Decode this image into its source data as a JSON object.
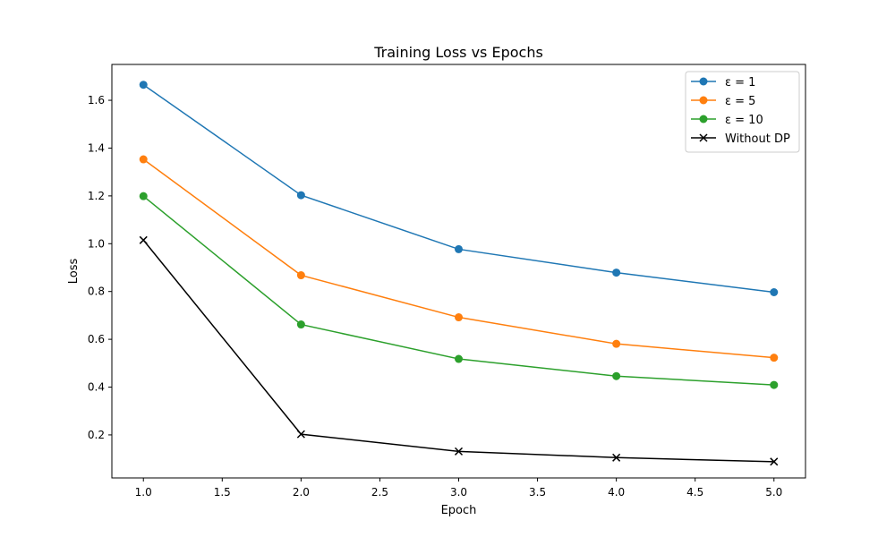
{
  "chart_data": {
    "type": "line",
    "title": "Training Loss vs Epochs",
    "xlabel": "Epoch",
    "ylabel": "Loss",
    "x": [
      1,
      2,
      3,
      4,
      5
    ],
    "xlim": [
      0.8,
      5.2
    ],
    "ylim": [
      0.02,
      1.75
    ],
    "xticks": [
      "1.0",
      "1.5",
      "2.0",
      "2.5",
      "3.0",
      "3.5",
      "4.0",
      "4.5",
      "5.0"
    ],
    "yticks": [
      "0.2",
      "0.4",
      "0.6",
      "0.8",
      "1.0",
      "1.2",
      "1.4",
      "1.6"
    ],
    "grid": false,
    "legend_position": "top-right",
    "series": [
      {
        "name": "ε = 1",
        "color": "#1f77b4",
        "marker": "circle",
        "values": [
          1.665,
          1.203,
          0.977,
          0.879,
          0.797
        ]
      },
      {
        "name": "ε = 5",
        "color": "#ff7f0e",
        "marker": "circle",
        "values": [
          1.353,
          0.868,
          0.692,
          0.581,
          0.523
        ]
      },
      {
        "name": "ε = 10",
        "color": "#2ca02c",
        "marker": "circle",
        "values": [
          1.199,
          0.662,
          0.518,
          0.446,
          0.409
        ]
      },
      {
        "name": "Without DP",
        "color": "#000000",
        "marker": "x",
        "values": [
          1.015,
          0.203,
          0.131,
          0.105,
          0.088
        ]
      }
    ]
  }
}
